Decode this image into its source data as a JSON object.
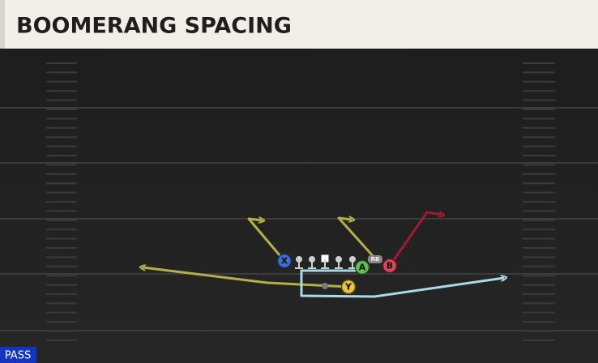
{
  "header": {
    "title": "BOOMERANG SPACING"
  },
  "badge": "PASS",
  "players": [
    {
      "label": "X"
    },
    {
      "label": "RB"
    },
    {
      "label": "A"
    },
    {
      "label": "B"
    },
    {
      "label": "Y"
    }
  ]
}
